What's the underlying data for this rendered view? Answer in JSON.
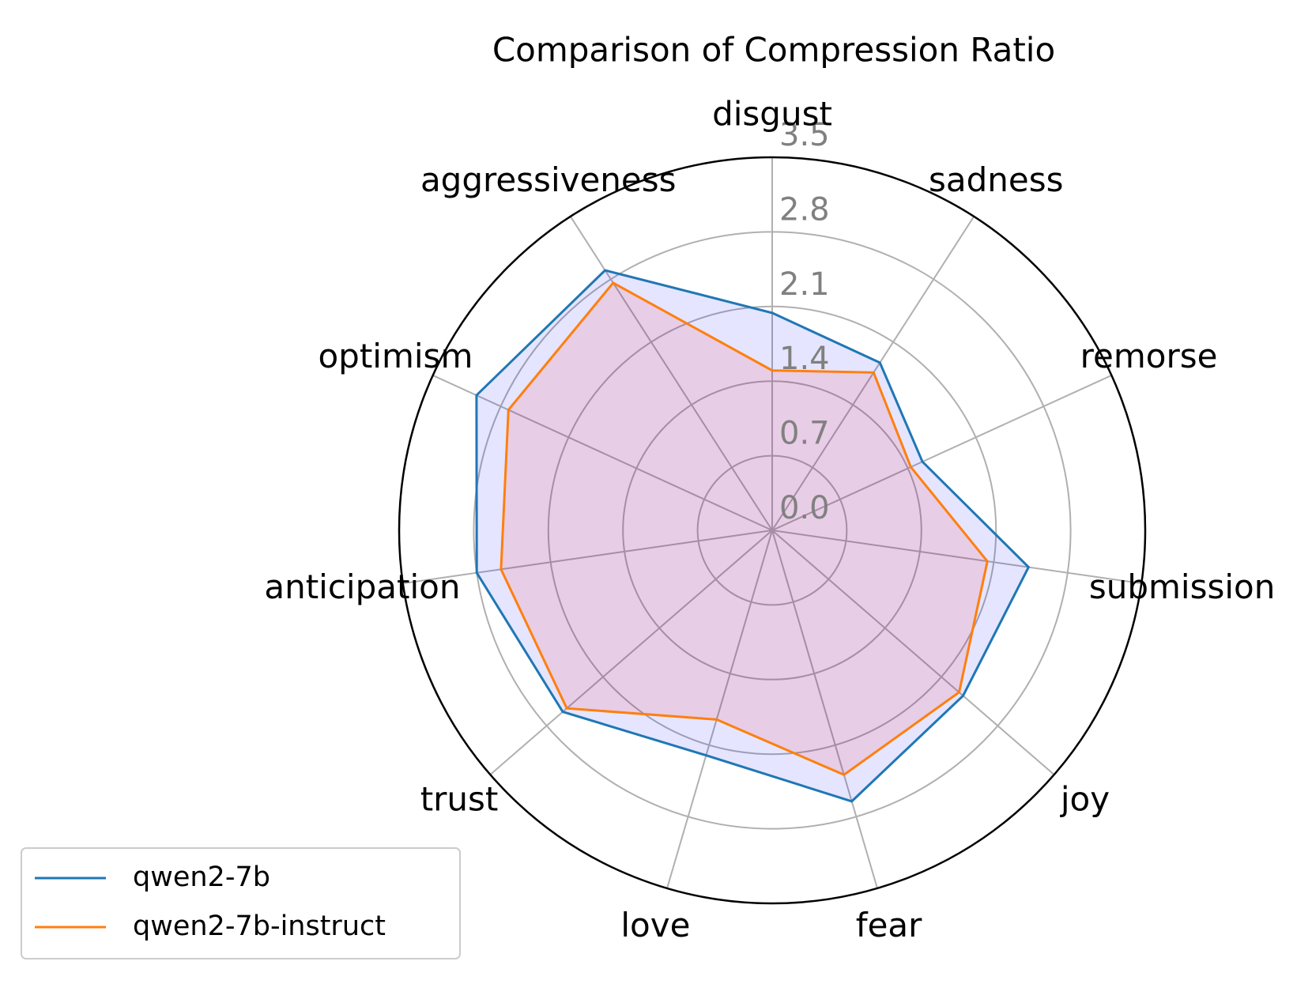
{
  "chart_data": {
    "type": "radar",
    "title": "Comparison of Compression Ratio",
    "categories": [
      "disgust",
      "sadness",
      "remorse",
      "submission",
      "joy",
      "fear",
      "love",
      "trust",
      "anticipation",
      "optimism",
      "aggressiveness"
    ],
    "series": [
      {
        "name": "qwen2-7b",
        "color": "#1f77b4",
        "fill_color": "blue",
        "values": [
          2.04,
          1.87,
          1.55,
          2.43,
          2.37,
          2.65,
          2.2,
          2.6,
          2.8,
          3.05,
          2.9
        ]
      },
      {
        "name": "qwen2-7b-instruct",
        "color": "#ff7f0e",
        "fill_color": "red",
        "values": [
          1.5,
          1.76,
          1.43,
          2.04,
          2.32,
          2.39,
          1.85,
          2.55,
          2.57,
          2.72,
          2.76
        ]
      }
    ],
    "ylim": [
      0,
      3.5
    ],
    "yticks": [
      {
        "value": 0,
        "label": "0.0"
      },
      0.7,
      1.4,
      2.1,
      2.8,
      3.5
    ],
    "grid": true,
    "legend": "lower left"
  }
}
